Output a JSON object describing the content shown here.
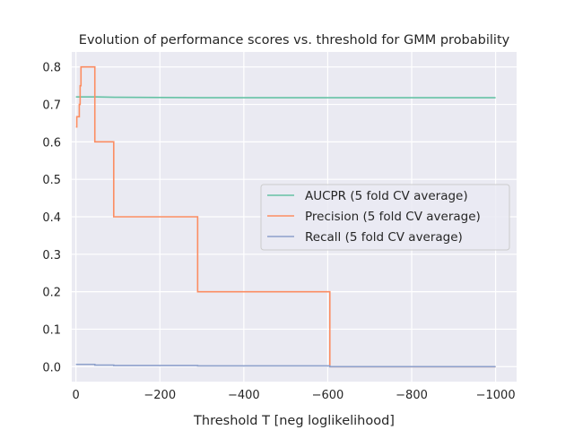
{
  "chart_data": {
    "type": "line",
    "title": "Evolution of performance scores vs. threshold for GMM probability",
    "xlabel": "Threshold T [neg loglikelihood]",
    "ylabel": "",
    "xlim": [
      10,
      -1050
    ],
    "ylim": [
      -0.04,
      0.84
    ],
    "x_inverted": true,
    "xticks": [
      0,
      -200,
      -400,
      -600,
      -800,
      -1000
    ],
    "xtick_labels": [
      "0",
      "−200",
      "−400",
      "−600",
      "−800",
      "−1000"
    ],
    "yticks": [
      0.0,
      0.1,
      0.2,
      0.3,
      0.4,
      0.5,
      0.6,
      0.7,
      0.8
    ],
    "ytick_labels": [
      "0.0",
      "0.1",
      "0.2",
      "0.3",
      "0.4",
      "0.5",
      "0.6",
      "0.7",
      "0.8"
    ],
    "grid": true,
    "legend_position": "center-right",
    "series": [
      {
        "name": "AUCPR (5 fold CV average)",
        "color": "#66c2a5",
        "x": [
          0,
          -50,
          -100,
          -300,
          -600,
          -1000
        ],
        "y": [
          0.72,
          0.72,
          0.719,
          0.718,
          0.718,
          0.718
        ]
      },
      {
        "name": "Precision (5 fold CV average)",
        "color": "#fc8d62",
        "x": [
          0,
          -2,
          -2,
          -8,
          -8,
          -10,
          -10,
          -12,
          -12,
          -20,
          -20,
          -45,
          -45,
          -90,
          -90,
          -290,
          -290,
          -605,
          -605,
          -1000
        ],
        "y": [
          0.64,
          0.64,
          0.667,
          0.667,
          0.7,
          0.7,
          0.75,
          0.75,
          0.8,
          0.8,
          0.8,
          0.8,
          0.6,
          0.6,
          0.4,
          0.4,
          0.2,
          0.2,
          0.0,
          0.0
        ]
      },
      {
        "name": "Recall (5 fold CV average)",
        "color": "#8da0cb",
        "x": [
          0,
          -45,
          -45,
          -90,
          -90,
          -290,
          -290,
          -605,
          -605,
          -1000
        ],
        "y": [
          0.006,
          0.006,
          0.004,
          0.004,
          0.003,
          0.003,
          0.002,
          0.002,
          0.0,
          0.0
        ]
      }
    ]
  }
}
